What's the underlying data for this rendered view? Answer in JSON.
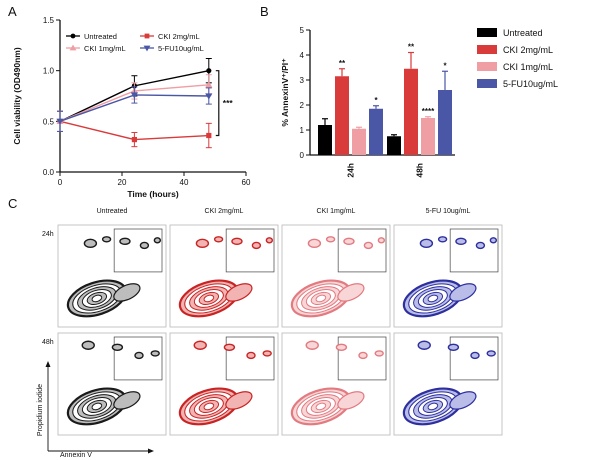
{
  "panels": {
    "a": "A",
    "b": "B",
    "c": "C"
  },
  "chart_data": [
    {
      "type": "line",
      "panel": "A",
      "xlabel": "Time (hours)",
      "ylabel": "Cell viability (OD490nm)",
      "xlim": [
        0,
        60
      ],
      "ylim": [
        0.0,
        1.5
      ],
      "xticks": [
        "0",
        "20",
        "40",
        "60"
      ],
      "yticks": [
        "0.0",
        "0.5",
        "1.0",
        "1.5"
      ],
      "x": [
        0,
        24,
        48
      ],
      "series": [
        {
          "name": "Untreated",
          "color": "#000000",
          "marker": "circle",
          "values": [
            0.5,
            0.85,
            1.0
          ],
          "errors": [
            0.1,
            0.1,
            0.12
          ]
        },
        {
          "name": "CKI 2mg/mL",
          "color": "#d93a3a",
          "marker": "square",
          "values": [
            0.5,
            0.32,
            0.36
          ],
          "errors": [
            0.1,
            0.07,
            0.12
          ]
        },
        {
          "name": "CKI 1mg/mL",
          "color": "#ef9ea4",
          "marker": "triangle",
          "values": [
            0.5,
            0.8,
            0.86
          ],
          "errors": [
            0.1,
            0.08,
            0.1
          ]
        },
        {
          "name": "5-FU10ug/mL",
          "color": "#4a57a6",
          "marker": "triangle-down",
          "values": [
            0.5,
            0.76,
            0.75
          ],
          "errors": [
            0.1,
            0.08,
            0.08
          ]
        }
      ],
      "annotation": "***",
      "legend": "top"
    },
    {
      "type": "bar",
      "panel": "B",
      "ylabel": "% AnnexinV⁺/PI⁺",
      "ylim": [
        0,
        5
      ],
      "yticks": [
        "0",
        "1",
        "2",
        "3",
        "4",
        "5"
      ],
      "categories": [
        "24h",
        "48h"
      ],
      "series": [
        {
          "name": "Untreated",
          "color": "#000000",
          "values": [
            1.2,
            0.75
          ],
          "errors": [
            0.25,
            0.06
          ],
          "sig": [
            "",
            ""
          ]
        },
        {
          "name": "CKI 2mg/mL",
          "color": "#d93a3a",
          "values": [
            3.15,
            3.45
          ],
          "errors": [
            0.3,
            0.65
          ],
          "sig": [
            "**",
            "**"
          ]
        },
        {
          "name": "CKI 1mg/mL",
          "color": "#ef9ea4",
          "values": [
            1.05,
            1.48
          ],
          "errors": [
            0.06,
            0.05
          ],
          "sig": [
            "",
            "****"
          ]
        },
        {
          "name": "5-FU10ug/mL",
          "color": "#4a57a6",
          "values": [
            1.85,
            2.6
          ],
          "errors": [
            0.12,
            0.75
          ],
          "sig": [
            "*",
            "*"
          ]
        }
      ],
      "legend": "right"
    }
  ],
  "flow": {
    "columns": [
      {
        "title": "Untreated",
        "color": "#1a1a1a",
        "light": "#bdbdbd"
      },
      {
        "title": "CKI 2mg/mL",
        "color": "#c92424",
        "light": "#f2b3b3"
      },
      {
        "title": "CKI 1mg/mL",
        "color": "#e27a80",
        "light": "#f8d6d8"
      },
      {
        "title": "5-FU 10ug/mL",
        "color": "#2d2f9e",
        "light": "#b9bde8"
      }
    ],
    "rows": [
      "24h",
      "48h"
    ],
    "xaxis": "Annexin V",
    "yaxis": "Propidium iodide"
  }
}
